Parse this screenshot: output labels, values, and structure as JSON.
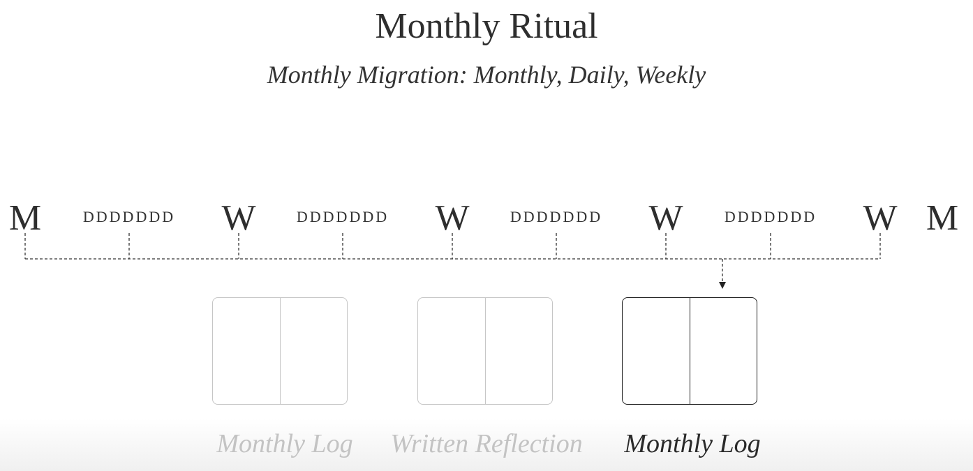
{
  "header": {
    "title": "Monthly Ritual",
    "subtitle": "Monthly Migration: Monthly, Daily, Weekly"
  },
  "timeline": {
    "markers": [
      "M",
      "W",
      "W",
      "W",
      "W",
      "M"
    ],
    "day_groups": [
      "DDDDDDD",
      "DDDDDDD",
      "DDDDDDD",
      "DDDDDDD"
    ]
  },
  "notebooks": [
    {
      "label": "Monthly Log",
      "state": "muted"
    },
    {
      "label": "Written Reflection",
      "state": "muted"
    },
    {
      "label": "Monthly Log",
      "state": "active"
    }
  ],
  "colors": {
    "active": "#1e1e1e",
    "muted": "#c6c6c6",
    "text": "#2e2e2e"
  }
}
